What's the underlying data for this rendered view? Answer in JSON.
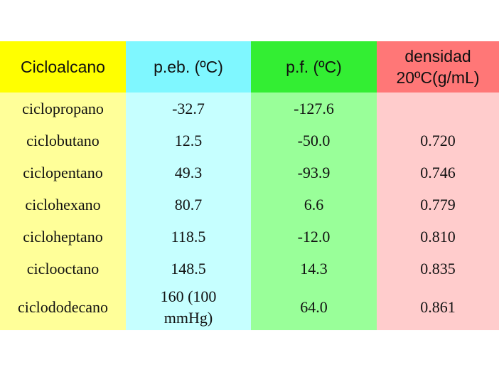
{
  "columns": [
    "Cicloalcano",
    "p.eb. (ºC)",
    "p.f. (ºC)",
    "densidad 20ºC(g/mL)"
  ],
  "rows": [
    [
      "ciclopropano",
      "-32.7",
      "-127.6",
      ""
    ],
    [
      "ciclobutano",
      "12.5",
      "-50.0",
      "0.720"
    ],
    [
      "ciclopentano",
      "49.3",
      "-93.9",
      "0.746"
    ],
    [
      "ciclohexano",
      "80.7",
      "6.6",
      "0.779"
    ],
    [
      "cicloheptano",
      "118.5",
      "-12.0",
      "0.810"
    ],
    [
      "ciclooctano",
      "148.5",
      "14.3",
      "0.835"
    ],
    [
      "ciclododecano",
      "160 (100 mmHg)",
      "64.0",
      "0.861"
    ]
  ],
  "colors": {
    "col1_header": "#ffff00",
    "col2_header": "#7ff7ff",
    "col3_header": "#33ee33",
    "col4_header": "#ff7777",
    "col1_body": "#ffff99",
    "col2_body": "#c6ffff",
    "col3_body": "#99ff99",
    "col4_body": "#ffcccc"
  }
}
